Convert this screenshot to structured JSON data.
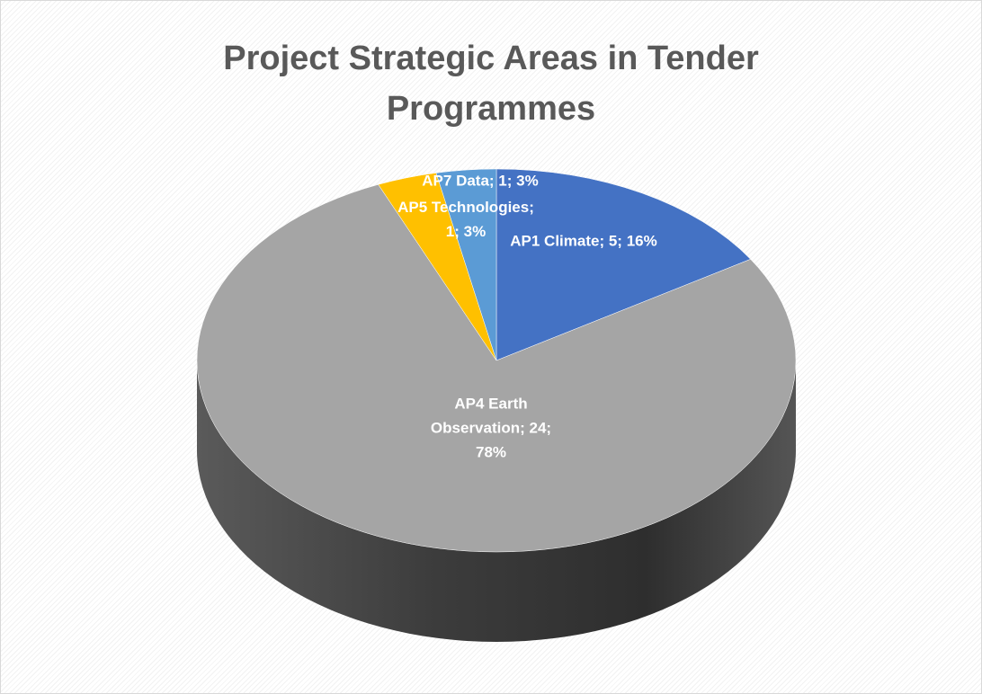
{
  "chart_data": {
    "type": "pie",
    "title": "Project Strategic Areas in Tender Programmes",
    "categories": [
      "AP1 Climate",
      "AP4 Earth Observation",
      "AP5 Technologies",
      "AP7 Data"
    ],
    "values": [
      5,
      24,
      1,
      1
    ],
    "value_labels": [
      "AP1 Climate; 5; 16%",
      "AP4 Earth Observation; 24; 78%",
      "AP5 Technologies; 1; 3%",
      "AP7 Data; 1; 3%"
    ],
    "colors": [
      "#4472c4",
      "#a5a5a5",
      "#ffc000",
      "#5b9bd5"
    ]
  }
}
